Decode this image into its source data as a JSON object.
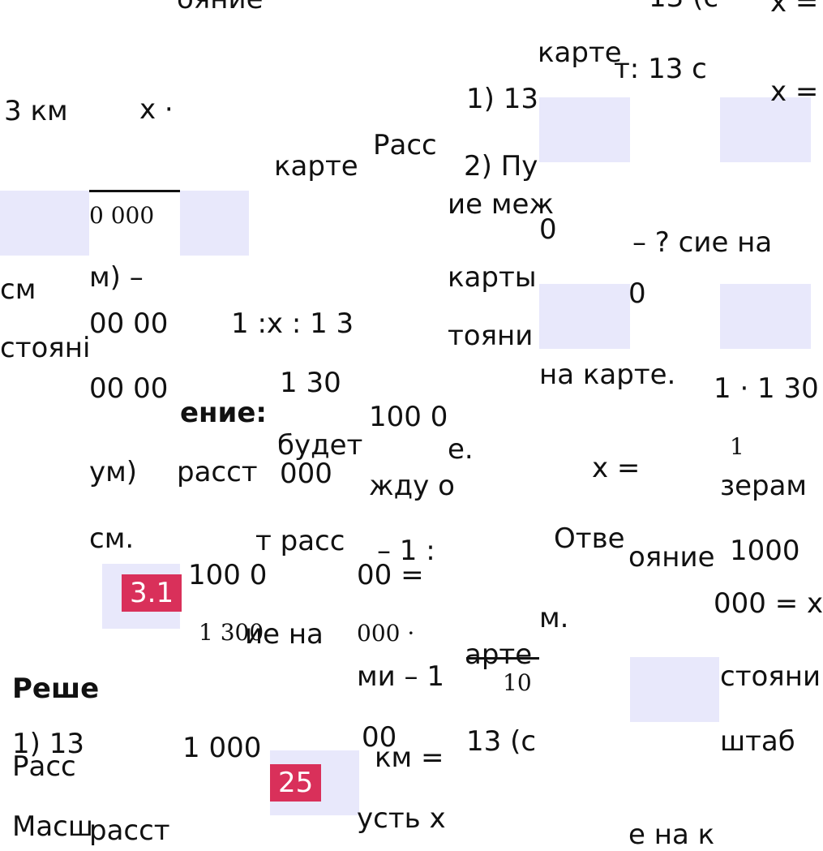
{
  "fragments": [
    "ояние",
    "13 (с",
    "х =",
    "карте",
    "т: 13 с",
    "х =",
    "3 км",
    "х ·",
    "1) 13",
    "Расс",
    "карте",
    "2) Пу",
    "0 000",
    "ие меж",
    "0",
    "– ? сие на",
    "см",
    "м) –",
    "карты",
    "0",
    "00 00",
    "1 :х : 1 3",
    "тояни",
    "стояні",
    "00 00",
    "1 30",
    "на карте.",
    "1 · 1 30",
    "ение:",
    "100 0",
    "будет",
    "е.",
    "1",
    "ум)",
    "расст",
    "000",
    "жду о",
    "х =",
    "зерам",
    "см.",
    "т расс",
    "– 1 :",
    "Отве",
    "ояние",
    "1000",
    "100 0",
    "00 =",
    "000 = х",
    "1 300",
    "ие на",
    "000 ·",
    "м.",
    "Реше",
    "ми – 1",
    "арте",
    "10",
    "стояни",
    "1) 13",
    "1 000",
    "00",
    "км =",
    "13 (с",
    "штаб",
    "Расс",
    "Масш",
    "расст",
    "усть х",
    "е на к"
  ],
  "badges": [
    "3.1",
    "25"
  ]
}
